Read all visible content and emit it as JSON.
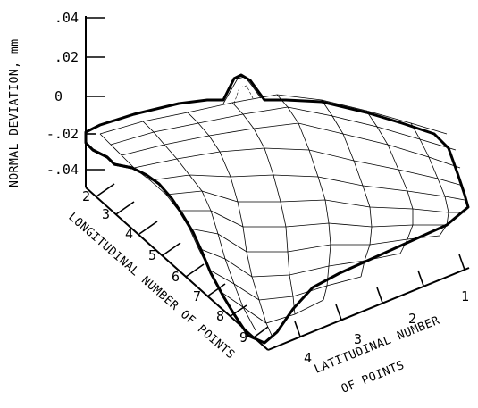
{
  "chart_data": {
    "type": "surface",
    "zlabel": "NORMAL DEVIATION, mm",
    "zticks": [
      ".04",
      ".02",
      "0",
      "-.02",
      "-.04"
    ],
    "zlim": [
      -0.04,
      0.04
    ],
    "ylabel": "LONGITUDINAL NUMBER OF POINTS",
    "yticks": [
      "2",
      "3",
      "4",
      "5",
      "6",
      "7",
      "8",
      "9"
    ],
    "xlabel_line1": "LATITUDINAL NUMBER",
    "xlabel_line2": "OF POINTS",
    "xticks": [
      "1",
      "2",
      "3",
      "4"
    ],
    "grid": false
  }
}
